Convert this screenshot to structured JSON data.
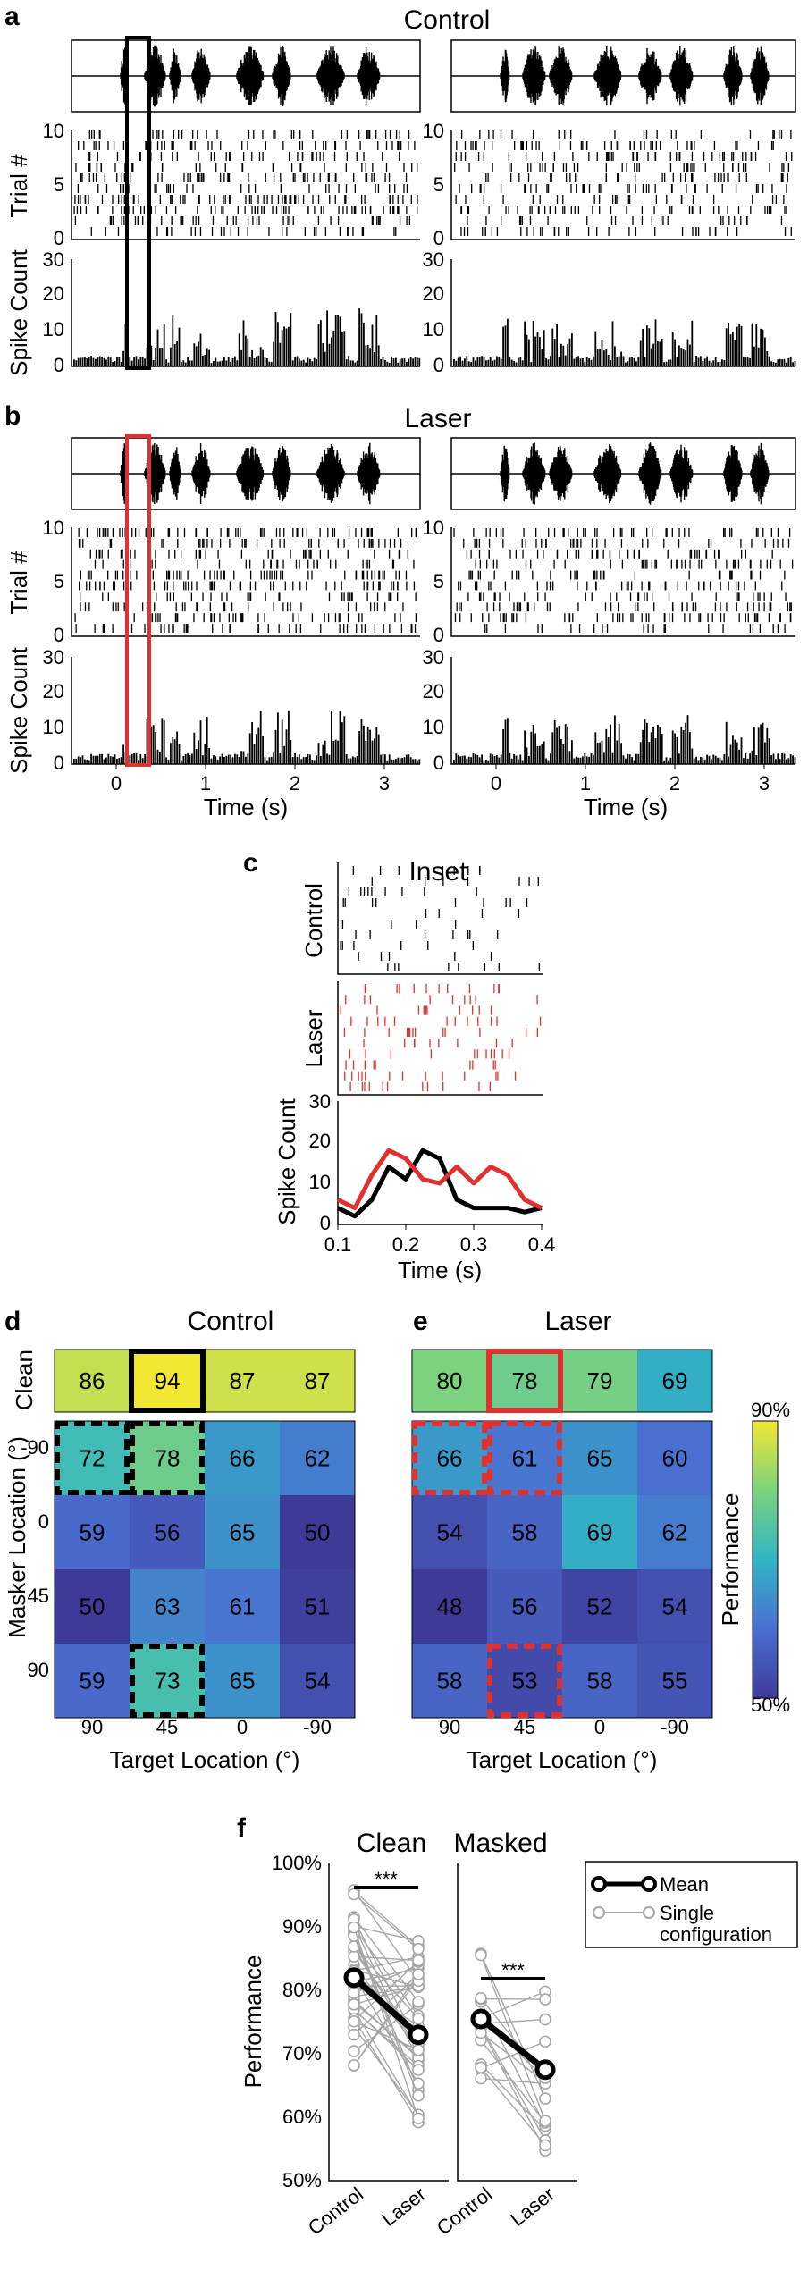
{
  "panel_letters": {
    "a": "a",
    "b": "b",
    "c": "c",
    "d": "d",
    "e": "e",
    "f": "f"
  },
  "panel_a": {
    "title": "Control"
  },
  "panel_b": {
    "title": "Laser"
  },
  "raster_common": {
    "trial_label": "Trial #",
    "spike_label": "Spike Count",
    "time_label": "Time (s)",
    "trial_ticks": [
      0,
      5,
      10
    ],
    "spike_ticks": [
      0,
      10,
      20,
      30
    ],
    "time_ticks": [
      0,
      1,
      2,
      3
    ]
  },
  "panel_c": {
    "title": "Inset",
    "control_label": "Control",
    "laser_label": "Laser",
    "spike_label": "Spike Count",
    "time_label": "Time (s)",
    "yticks": [
      0,
      10,
      20,
      30
    ],
    "xticks": [
      "0.1",
      "0.2",
      "0.3",
      "0.4"
    ]
  },
  "panel_d": {
    "title": "Control"
  },
  "panel_e": {
    "title": "Laser"
  },
  "heatmap_common": {
    "clean_label": "Clean",
    "masker_label": "Masker Location (°)",
    "target_label": "Target Location (°)",
    "target_ticks": [
      "90",
      "45",
      "0",
      "-90"
    ],
    "masker_ticks": [
      "-90",
      "0",
      "45",
      "90"
    ],
    "colorbar_label": "Performance",
    "colorbar_ticks": [
      "90%",
      "50%"
    ]
  },
  "panel_f": {
    "clean_title": "Clean",
    "masked_title": "Masked",
    "ylabel": "Performance",
    "yticks": [
      "50%",
      "60%",
      "70%",
      "80%",
      "90%",
      "100%"
    ],
    "xticks": [
      "Control",
      "Laser"
    ],
    "sig": "***",
    "legend_mean": "Mean",
    "legend_single_1": "Single",
    "legend_single_2": "configuration"
  },
  "colors": {
    "laser": "#e0302f",
    "single": "#a6a6a6",
    "black": "#000000"
  },
  "chart_data": [
    {
      "type": "heatmap",
      "title": "Control",
      "clean": [
        86,
        94,
        87,
        87
      ],
      "masked": [
        [
          72,
          78,
          66,
          62
        ],
        [
          59,
          56,
          65,
          50
        ],
        [
          50,
          63,
          61,
          51
        ],
        [
          59,
          73,
          65,
          54
        ]
      ],
      "x_categories": [
        "90",
        "45",
        "0",
        "-90"
      ],
      "y_categories": [
        "-90",
        "0",
        "45",
        "90"
      ],
      "xlabel": "Target Location (°)",
      "ylabel": "Masker Location (°)",
      "color_range": [
        50,
        90
      ]
    },
    {
      "type": "heatmap",
      "title": "Laser",
      "clean": [
        80,
        78,
        79,
        69
      ],
      "masked": [
        [
          66,
          61,
          65,
          60
        ],
        [
          54,
          58,
          69,
          62
        ],
        [
          48,
          56,
          52,
          54
        ],
        [
          58,
          53,
          58,
          55
        ]
      ],
      "x_categories": [
        "90",
        "45",
        "0",
        "-90"
      ],
      "y_categories": [
        "-90",
        "0",
        "45",
        "90"
      ],
      "xlabel": "Target Location (°)",
      "ylabel": "Masker Location (°)",
      "color_range": [
        50,
        90
      ]
    },
    {
      "type": "line",
      "title": "Clean",
      "categories": [
        "Control",
        "Laser"
      ],
      "series": [
        {
          "name": "Mean",
          "values": [
            82,
            73
          ]
        }
      ],
      "ylabel": "Performance",
      "ylim": [
        50,
        100
      ]
    },
    {
      "type": "line",
      "title": "Masked",
      "categories": [
        "Control",
        "Laser"
      ],
      "series": [
        {
          "name": "Mean",
          "values": [
            75.5,
            67.5
          ]
        }
      ],
      "ylabel": "Performance",
      "ylim": [
        50,
        100
      ]
    },
    {
      "type": "line",
      "title": "Inset",
      "x": [
        0.1,
        0.125,
        0.15,
        0.175,
        0.2,
        0.225,
        0.25,
        0.275,
        0.3,
        0.325,
        0.35,
        0.375,
        0.4
      ],
      "series": [
        {
          "name": "Control",
          "values": [
            4,
            2,
            6,
            14,
            11,
            18,
            16,
            6,
            4,
            4,
            4,
            3,
            4
          ]
        },
        {
          "name": "Laser",
          "values": [
            6,
            4,
            12,
            18,
            16,
            11,
            10,
            14,
            10,
            14,
            12,
            6,
            4
          ]
        }
      ],
      "xlabel": "Time (s)",
      "ylabel": "Spike Count",
      "ylim": [
        0,
        30
      ],
      "xlim": [
        0.1,
        0.4
      ]
    }
  ]
}
